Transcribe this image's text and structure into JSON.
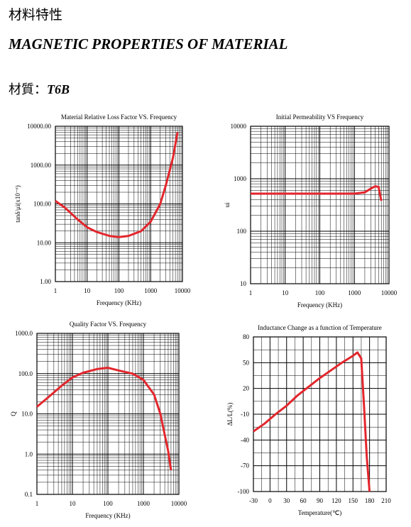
{
  "header": {
    "title_cn": "材料特性",
    "title_en": "MAGNETIC PROPERTIES OF MATERIAL",
    "material_label": "材質：",
    "material": "T6B"
  },
  "chart_data": [
    {
      "type": "line",
      "title": "Material Relative Loss Factor VS. Frequency",
      "x_label": "Frequency (KHz)",
      "y_label": "tanδ/μi(x10⁻⁶)",
      "xscale": "log",
      "yscale": "log",
      "grid": true,
      "xlim": [
        1,
        10000
      ],
      "ylim": [
        1,
        10000
      ],
      "xticks": [
        1,
        10,
        100,
        1000,
        10000
      ],
      "yticks": [
        {
          "value": 1,
          "label": "1.00"
        },
        {
          "value": 10,
          "label": "10.00"
        },
        {
          "value": 100,
          "label": "100.00"
        },
        {
          "value": 1000,
          "label": "1000.00"
        },
        {
          "value": 10000,
          "label": "10000.00"
        }
      ],
      "x": [
        1,
        2,
        5,
        10,
        20,
        50,
        100,
        200,
        500,
        1000,
        2000,
        3000,
        5000,
        7000
      ],
      "series": [
        {
          "color": "#e3262c",
          "values": [
            120,
            80,
            40,
            25,
            19,
            15,
            14,
            15,
            20,
            35,
            100,
            300,
            1500,
            7000
          ]
        }
      ]
    },
    {
      "type": "line",
      "title": "Initial Permeability VS Frequency",
      "x_label": "Frequency (KHz)",
      "y_label": "ui",
      "xscale": "log",
      "yscale": "log",
      "grid": true,
      "xlim": [
        1,
        10000
      ],
      "ylim": [
        10,
        10000
      ],
      "xticks": [
        1,
        10,
        100,
        1000,
        10000
      ],
      "yticks": [
        10,
        100,
        1000,
        10000
      ],
      "x": [
        1,
        10,
        100,
        1000,
        2000,
        3000,
        4000,
        5000,
        6000
      ],
      "series": [
        {
          "color": "#e3262c",
          "values": [
            520,
            520,
            520,
            520,
            550,
            650,
            720,
            700,
            380
          ]
        }
      ]
    },
    {
      "type": "line",
      "title": "Quality Factor  VS. Frequency",
      "x_label": "Frequency (KHz)",
      "y_label": "Q",
      "xscale": "log",
      "yscale": "log",
      "grid": true,
      "xlim": [
        1,
        10000
      ],
      "ylim": [
        0.1,
        1000
      ],
      "xticks": [
        1,
        10,
        100,
        1000,
        10000
      ],
      "yticks": [
        0.1,
        {
          "value": 1,
          "label": "1.0"
        },
        {
          "value": 10,
          "label": "10.0"
        },
        {
          "value": 100,
          "label": "100.0"
        },
        {
          "value": 1000,
          "label": "1000.0"
        }
      ],
      "x": [
        1,
        2,
        5,
        10,
        20,
        50,
        100,
        200,
        500,
        1000,
        2000,
        3000,
        4000,
        5000,
        6000
      ],
      "series": [
        {
          "color": "#e3262c",
          "values": [
            15,
            25,
            50,
            80,
            105,
            130,
            140,
            120,
            100,
            70,
            30,
            10,
            3,
            1.2,
            0.4
          ]
        }
      ]
    },
    {
      "type": "line",
      "title": "Inductance Change as a function of Temperature",
      "x_label": "Temperature(℃)",
      "y_label": "ΔL/L(%)",
      "xscale": "linear",
      "yscale": "linear",
      "grid": true,
      "xlim": [
        -30,
        210
      ],
      "ylim": [
        -100,
        80
      ],
      "xticks": [
        -30,
        0,
        30,
        60,
        90,
        120,
        150,
        180,
        210
      ],
      "yticks": [
        80,
        50,
        20,
        -10,
        -40,
        -70,
        -100
      ],
      "x": [
        -30,
        -10,
        10,
        30,
        50,
        70,
        90,
        110,
        130,
        150,
        158,
        165,
        170,
        175,
        180
      ],
      "series": [
        {
          "color": "#e3262c",
          "values": [
            -30,
            -21,
            -10,
            0,
            12,
            22,
            32,
            41,
            50,
            58,
            62,
            55,
            0,
            -60,
            -100
          ]
        }
      ]
    }
  ]
}
